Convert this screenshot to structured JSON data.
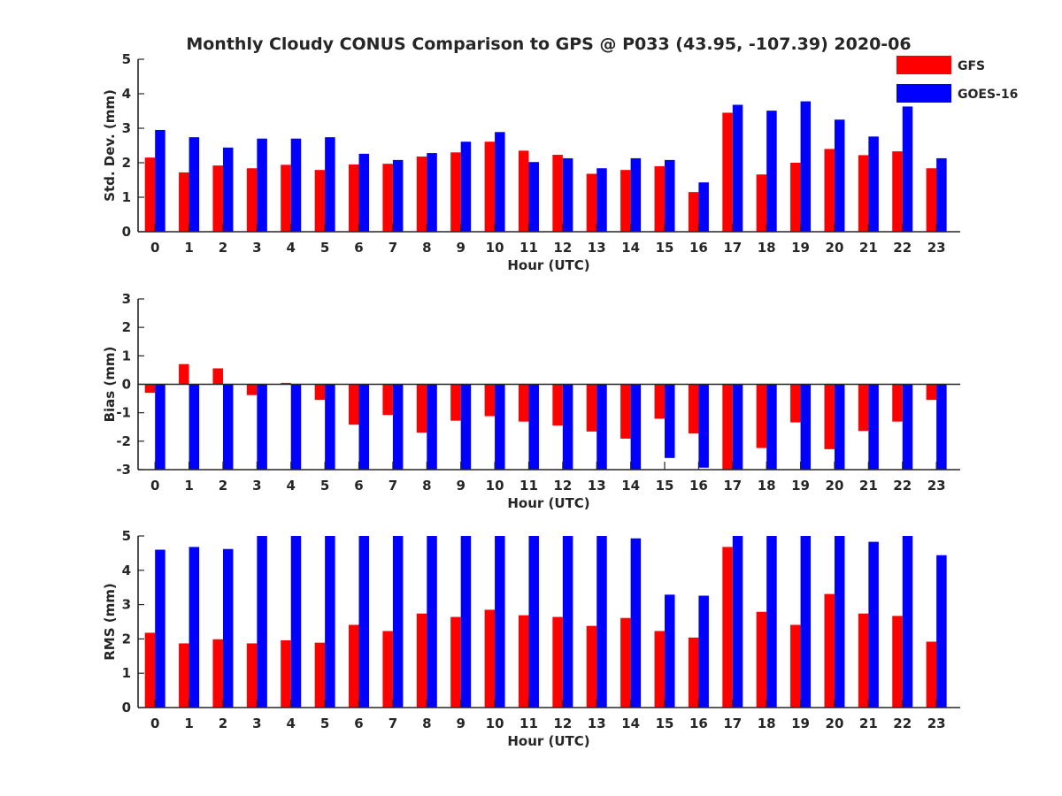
{
  "title": "Monthly Cloudy CONUS Comparison to GPS @ P033 (43.95, -107.39) 2020-06",
  "colors": {
    "gfs": "#ff0000",
    "goes": "#0000ff",
    "axis": "#262626"
  },
  "chart_data": [
    {
      "type": "bar",
      "xlabel": "Hour (UTC)",
      "ylabel": "Std. Dev. (mm)",
      "ylim": [
        0,
        5
      ],
      "yticks": [
        "0",
        "1",
        "2",
        "3",
        "4",
        "5"
      ],
      "categories": [
        "0",
        "1",
        "2",
        "3",
        "4",
        "5",
        "6",
        "7",
        "8",
        "9",
        "10",
        "11",
        "12",
        "13",
        "14",
        "15",
        "16",
        "17",
        "18",
        "19",
        "20",
        "21",
        "22",
        "23"
      ],
      "legend": "top-right",
      "series": [
        {
          "name": "GFS",
          "color": "#ff0000",
          "values": [
            2.15,
            1.72,
            1.92,
            1.84,
            1.94,
            1.79,
            1.95,
            1.97,
            2.18,
            2.3,
            2.61,
            2.35,
            2.23,
            1.68,
            1.79,
            1.9,
            1.15,
            3.45,
            1.66,
            2.0,
            2.4,
            2.22,
            2.33,
            1.84
          ]
        },
        {
          "name": "GOES-16",
          "color": "#0000ff",
          "values": [
            2.95,
            2.74,
            2.44,
            2.7,
            2.7,
            2.74,
            2.26,
            2.08,
            2.28,
            2.61,
            2.89,
            2.02,
            2.13,
            1.84,
            2.13,
            2.08,
            1.43,
            3.68,
            3.51,
            3.78,
            3.25,
            2.76,
            3.63,
            2.13
          ]
        }
      ]
    },
    {
      "type": "bar",
      "xlabel": "Hour (UTC)",
      "ylabel": "Bias (mm)",
      "ylim": [
        -3,
        3
      ],
      "yticks": [
        "-3",
        "-2",
        "-1",
        "0",
        "1",
        "2",
        "3"
      ],
      "categories": [
        "0",
        "1",
        "2",
        "3",
        "4",
        "5",
        "6",
        "7",
        "8",
        "9",
        "10",
        "11",
        "12",
        "13",
        "14",
        "15",
        "16",
        "17",
        "18",
        "19",
        "20",
        "21",
        "22",
        "23"
      ],
      "series": [
        {
          "name": "GFS",
          "color": "#ff0000",
          "values": [
            -0.3,
            0.71,
            0.56,
            -0.38,
            0.05,
            -0.55,
            -1.42,
            -1.08,
            -1.7,
            -1.28,
            -1.12,
            -1.31,
            -1.45,
            -1.66,
            -1.91,
            -1.21,
            -1.73,
            -3.0,
            -2.24,
            -1.34,
            -2.28,
            -1.64,
            -1.31,
            -0.55
          ]
        },
        {
          "name": "GOES-16",
          "color": "#0000ff",
          "values": [
            -3.0,
            -3.0,
            -3.0,
            -3.0,
            -3.0,
            -3.0,
            -3.0,
            -3.0,
            -3.0,
            -3.0,
            -3.0,
            -3.0,
            -3.0,
            -3.0,
            -3.0,
            -2.59,
            -2.93,
            -3.0,
            -3.0,
            -3.0,
            -3.0,
            -3.0,
            -3.0,
            -3.0
          ]
        }
      ]
    },
    {
      "type": "bar",
      "xlabel": "Hour (UTC)",
      "ylabel": "RMS (mm)",
      "ylim": [
        0,
        5
      ],
      "yticks": [
        "0",
        "1",
        "2",
        "3",
        "4",
        "5"
      ],
      "categories": [
        "0",
        "1",
        "2",
        "3",
        "4",
        "5",
        "6",
        "7",
        "8",
        "9",
        "10",
        "11",
        "12",
        "13",
        "14",
        "15",
        "16",
        "17",
        "18",
        "19",
        "20",
        "21",
        "22",
        "23"
      ],
      "series": [
        {
          "name": "GFS",
          "color": "#ff0000",
          "values": [
            2.18,
            1.87,
            1.99,
            1.87,
            1.96,
            1.89,
            2.41,
            2.23,
            2.74,
            2.64,
            2.85,
            2.69,
            2.64,
            2.38,
            2.61,
            2.23,
            2.04,
            4.68,
            2.79,
            2.41,
            3.31,
            2.74,
            2.67,
            1.92
          ]
        },
        {
          "name": "GOES-16",
          "color": "#0000ff",
          "values": [
            4.6,
            4.68,
            4.62,
            5.0,
            5.0,
            5.0,
            5.0,
            5.0,
            5.0,
            5.0,
            5.0,
            5.0,
            5.0,
            5.0,
            4.93,
            3.29,
            3.26,
            5.0,
            5.0,
            5.0,
            5.0,
            4.83,
            5.0,
            4.44
          ]
        }
      ]
    }
  ]
}
